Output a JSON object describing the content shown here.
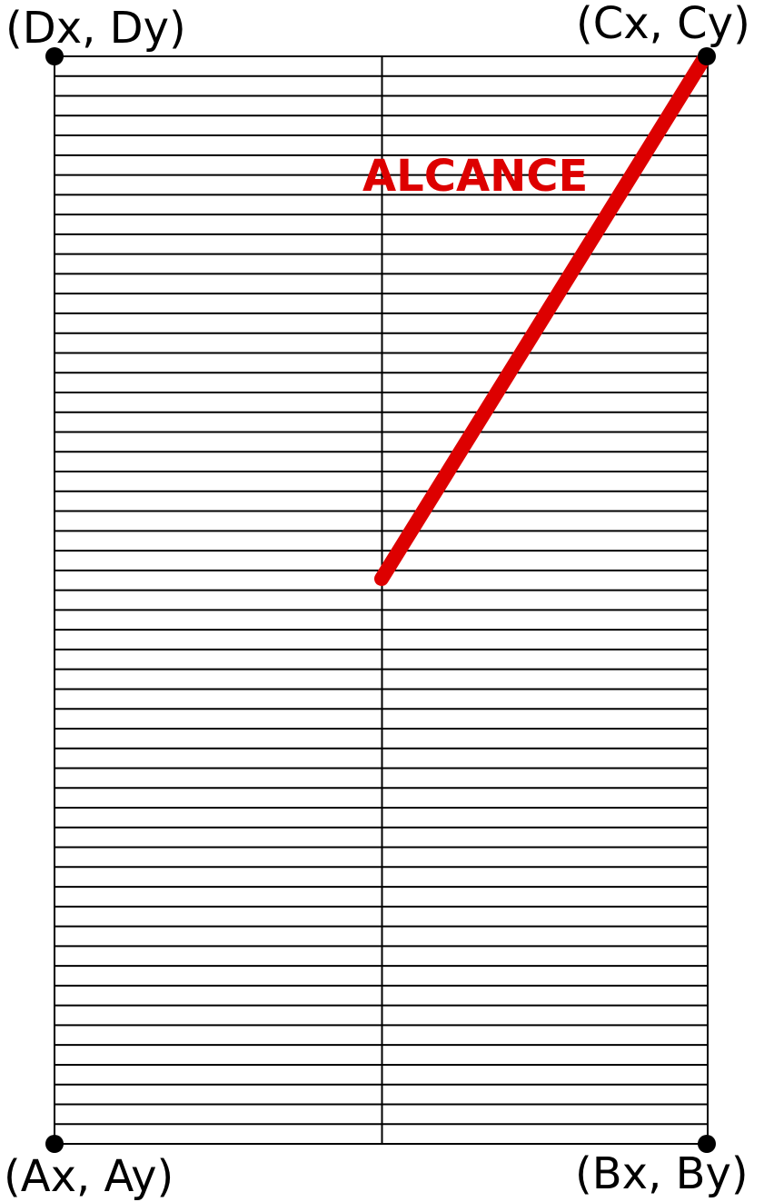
{
  "corners": {
    "a": "(Ax, Ay)",
    "b": "(Bx, By)",
    "c": "(Cx, Cy)",
    "d": "(Dx, Dy)"
  },
  "reach": {
    "label": "ALCANCE",
    "color": "#dd0000"
  },
  "grid": {
    "rows": 55,
    "columns": 2,
    "line_color": "#000000"
  }
}
